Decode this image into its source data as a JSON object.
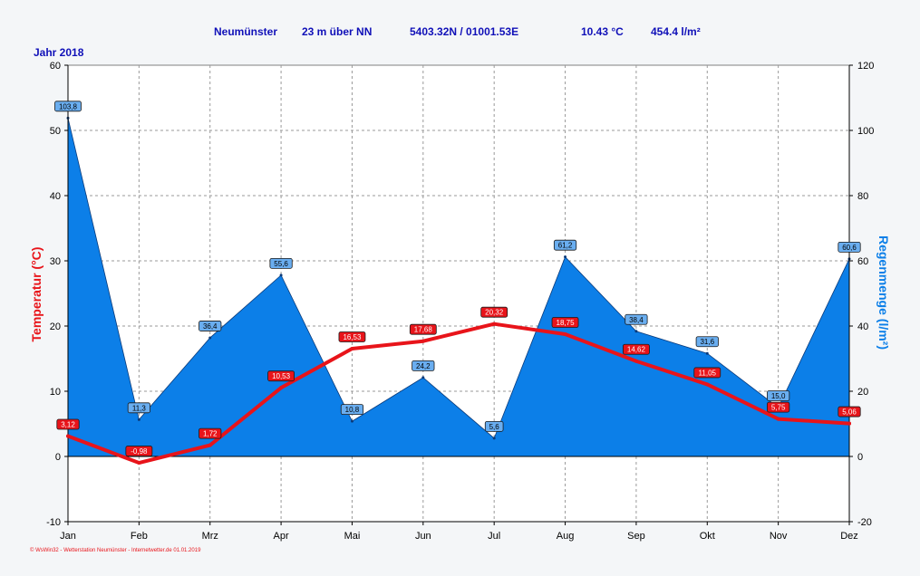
{
  "header": {
    "station": "Neumünster",
    "altitude": "23 m über NN",
    "coords": "5403.32N / 01001.53E",
    "avg_temp": "10.43 °C",
    "total_rain": "454.4 l/m²",
    "year": "Jahr  2018"
  },
  "footer": "© WsWin32 - Wetterstation Neumünster - Internetwetter.de  01.01.2019",
  "colors": {
    "temperature": "#e8141a",
    "rain_fill": "#0c7fe8",
    "rain_label_bg": "#6aaef0",
    "temp_label_bg": "#e8141a",
    "plot_bg": "#ffffff",
    "title": "#1010b8"
  },
  "chart_data": {
    "type": "line",
    "categories": [
      "Jan",
      "Feb",
      "Mrz",
      "Apr",
      "Mai",
      "Jun",
      "Jul",
      "Aug",
      "Sep",
      "Okt",
      "Nov",
      "Dez"
    ],
    "series": [
      {
        "name": "Temperatur",
        "axis": "left",
        "values": [
          3.12,
          -0.98,
          1.72,
          10.53,
          16.53,
          17.68,
          20.32,
          18.75,
          14.62,
          11.05,
          5.75,
          5.06
        ],
        "labels": [
          "3,12",
          "-0,98",
          "1,72",
          "10,53",
          "16,53",
          "17,68",
          "20,32",
          "18,75",
          "14,62",
          "11,05",
          "5,75",
          "5,06"
        ]
      },
      {
        "name": "Regenmenge",
        "axis": "right",
        "type": "area",
        "values": [
          103.8,
          11.3,
          36.4,
          55.6,
          10.8,
          24.2,
          5.6,
          61.2,
          38.4,
          31.6,
          15.0,
          60.6
        ],
        "labels": [
          "103,8",
          "11,3",
          "36,4",
          "55,6",
          "10,8",
          "24,2",
          "5,6",
          "61,2",
          "38,4",
          "31,6",
          "15,0",
          "60,6"
        ]
      }
    ],
    "ylabel": "Temperatur  (°C)",
    "y2label": "Regenmenge  (l/m²)",
    "ylim": [
      -10,
      60
    ],
    "y2lim": [
      -20,
      120
    ],
    "yticks": [
      "-10",
      "0",
      "10",
      "20",
      "30",
      "40",
      "50",
      "60"
    ],
    "y2ticks": [
      "-20",
      "0",
      "20",
      "40",
      "60",
      "80",
      "100",
      "120"
    ],
    "grid": true
  }
}
